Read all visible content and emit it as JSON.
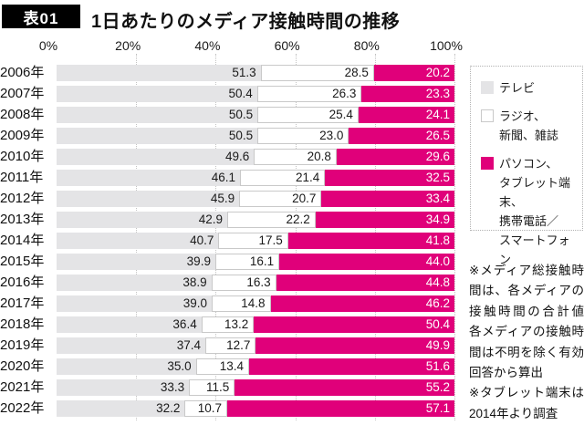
{
  "header": {
    "tag": "表01",
    "title": "1日あたりのメディア接触時間の推移"
  },
  "axis": {
    "ticks": [
      {
        "label": "0%",
        "pct": 0
      },
      {
        "label": "20%",
        "pct": 20
      },
      {
        "label": "40%",
        "pct": 40
      },
      {
        "label": "60%",
        "pct": 60
      },
      {
        "label": "80%",
        "pct": 80
      },
      {
        "label": "100%",
        "pct": 100
      }
    ],
    "gridline_pcts": [
      20,
      40,
      60,
      80,
      100
    ]
  },
  "colors": {
    "tv": "#e4e4e6",
    "print": "#ffffff",
    "print_border": "#c9c9c9",
    "digital": "#e0007a",
    "tag_bg": "#000000"
  },
  "legend": {
    "items": [
      {
        "name": "tv",
        "display": "テレビ",
        "color": "#e4e4e6",
        "border": "none"
      },
      {
        "name": "print",
        "display": "ラジオ、\n新聞、雑誌",
        "color": "#ffffff",
        "border": "1px solid #c9c9c9"
      },
      {
        "name": "digital",
        "display": "パソコン、\nタブレット端末、\n携帯電話／\nスマートフォン",
        "color": "#e0007a",
        "border": "none"
      }
    ]
  },
  "notes": [
    "※メディア総接触時間は、各メディアの接触時間の合計値　各メディアの接触時間は不明を除く有効回答から算出",
    "※タブレット端末は2014年より調査"
  ],
  "chart_data": {
    "type": "bar",
    "stacked": true,
    "orientation": "horizontal",
    "title": "1日あたりのメディア接触時間の推移",
    "xlabel": "",
    "ylabel": "",
    "xlim": [
      0,
      100
    ],
    "grid": true,
    "legend_position": "right",
    "value_labels": "inside-right, one decimal",
    "categories": [
      "2006年",
      "2007年",
      "2008年",
      "2009年",
      "2010年",
      "2011年",
      "2012年",
      "2013年",
      "2014年",
      "2015年",
      "2016年",
      "2017年",
      "2018年",
      "2019年",
      "2020年",
      "2021年",
      "2022年"
    ],
    "series": [
      {
        "name": "テレビ",
        "color": "#e4e4e6",
        "values": [
          51.3,
          50.4,
          50.5,
          50.5,
          49.6,
          46.1,
          45.9,
          42.9,
          40.7,
          39.9,
          38.9,
          39.0,
          36.4,
          37.4,
          35.0,
          33.3,
          32.2
        ]
      },
      {
        "name": "ラジオ、新聞、雑誌",
        "color": "#ffffff",
        "values": [
          28.5,
          26.3,
          25.4,
          23.0,
          20.8,
          21.4,
          20.7,
          22.2,
          17.5,
          16.1,
          16.3,
          14.8,
          13.2,
          12.7,
          13.4,
          11.5,
          10.7
        ]
      },
      {
        "name": "パソコン、タブレット端末、携帯電話／スマートフォン",
        "color": "#e0007a",
        "values": [
          20.2,
          23.3,
          24.1,
          26.5,
          29.6,
          32.5,
          33.4,
          34.9,
          41.8,
          44.0,
          44.8,
          46.2,
          50.4,
          49.9,
          51.6,
          55.2,
          57.1
        ]
      }
    ]
  }
}
